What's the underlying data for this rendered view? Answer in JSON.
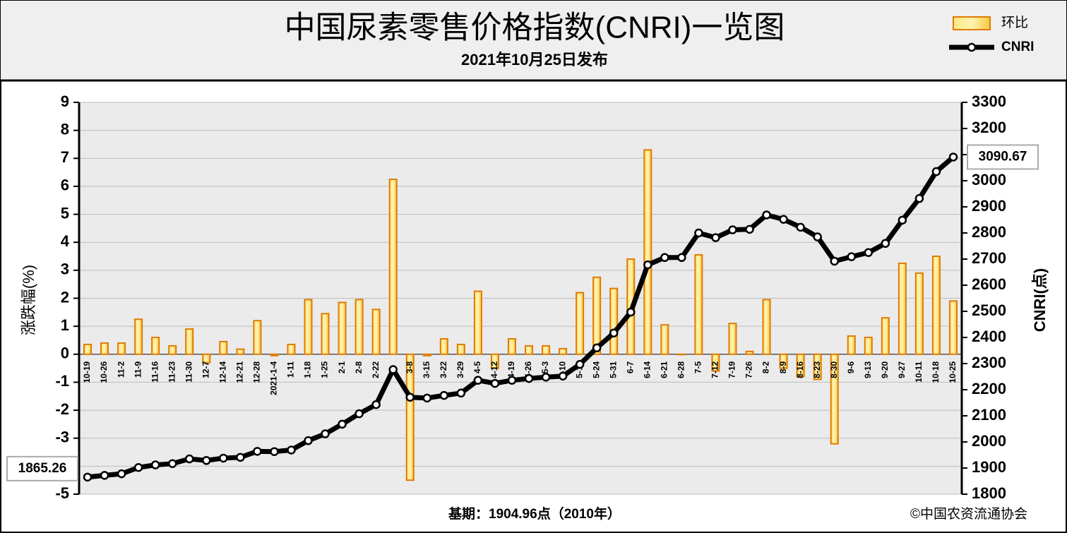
{
  "chart_data": {
    "type": "combo",
    "title": "中国尿素零售价格指数(CNRI)一览图",
    "subtitle": "2021年10月25日发布",
    "ylabel": "涨跌幅(%)",
    "y2label": "CNRI(点)",
    "categories": [
      "10-19",
      "10-26",
      "11-2",
      "11-9",
      "11-16",
      "11-23",
      "11-30",
      "12-7",
      "12-14",
      "12-21",
      "12-28",
      "2021-1-4",
      "1-11",
      "1-18",
      "1-25",
      "2-1",
      "2-8",
      "2-22",
      null,
      "3-8",
      "3-15",
      "3-22",
      "3-29",
      "4-5",
      "4-12",
      "4-19",
      "4-26",
      "5-3",
      "5-10",
      "5-17",
      "5-24",
      "5-31",
      "6-7",
      "6-14",
      "6-21",
      "6-28",
      "7-5",
      "7-12",
      "7-19",
      "7-26",
      "8-2",
      "8-9",
      "8-16",
      "8-23",
      "8-30",
      "9-6",
      "9-13",
      "9-20",
      "9-27",
      "10-11",
      "10-18",
      "10-25"
    ],
    "series": [
      {
        "name": "环比",
        "type": "bar",
        "color": "#e07b00",
        "values": [
          0.35,
          0.4,
          0.4,
          1.25,
          0.6,
          0.3,
          0.9,
          -0.3,
          0.45,
          0.18,
          1.2,
          -0.05,
          0.35,
          1.95,
          1.45,
          1.85,
          1.95,
          1.6,
          6.25,
          -4.5,
          -0.05,
          0.55,
          0.35,
          2.25,
          -0.5,
          0.55,
          0.3,
          0.3,
          0.2,
          2.2,
          2.75,
          2.35,
          3.4,
          7.3,
          1.05,
          0,
          3.55,
          -0.6,
          1.1,
          0.1,
          1.95,
          -0.5,
          -0.8,
          -0.9,
          -3.2,
          0.65,
          0.6,
          1.3,
          3.25,
          2.9,
          3.5,
          1.9
        ]
      },
      {
        "name": "CNRI",
        "type": "line",
        "color": "#000000",
        "axis": "y2",
        "values": [
          1865.26,
          1872,
          1878,
          1902,
          1912,
          1917,
          1935,
          1929,
          1938,
          1941,
          1964,
          1963,
          1969,
          2005,
          2031,
          2068,
          2108,
          2143,
          2277,
          2171,
          2168,
          2178,
          2187,
          2236,
          2224,
          2236,
          2243,
          2248,
          2252,
          2297,
          2360,
          2417,
          2497,
          2678,
          2706,
          2706,
          2800,
          2782,
          2812,
          2814,
          2869,
          2852,
          2822,
          2785,
          2692,
          2709,
          2725,
          2760,
          2849,
          2932,
          3035,
          3090.67
        ]
      }
    ],
    "ylim": [
      -5,
      9
    ],
    "yticks": [
      -5,
      -4,
      -3,
      -2,
      -1,
      0,
      1,
      2,
      3,
      4,
      5,
      6,
      7,
      8,
      9
    ],
    "y2lim": [
      1800,
      3300
    ],
    "y2ticks": [
      1800,
      1900,
      2000,
      2100,
      2200,
      2300,
      2400,
      2500,
      2600,
      2700,
      2800,
      2900,
      3000,
      3100,
      3200,
      3300
    ],
    "grid": true,
    "legend": "top-right",
    "annotations": [
      "基期：1904.96点（2010年）",
      "©中国农资流通协会"
    ]
  }
}
